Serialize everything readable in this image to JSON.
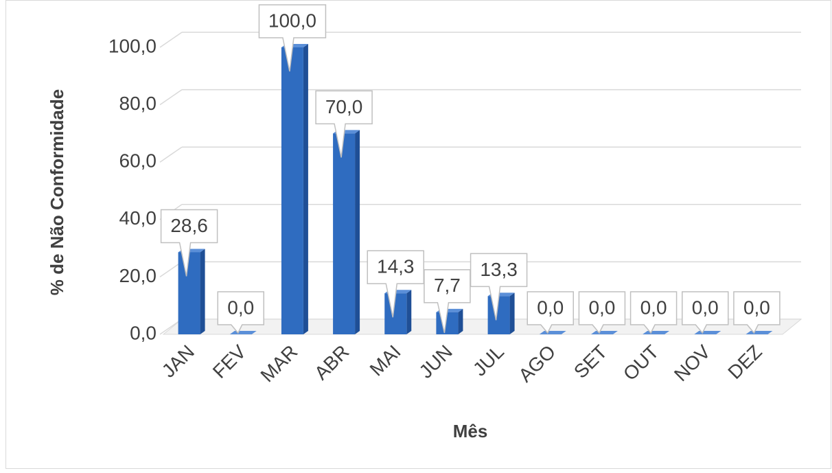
{
  "chart_data": {
    "type": "bar",
    "x_label": "Mês",
    "y_label": "% de Não Conformidade",
    "categories": [
      "JAN",
      "FEV",
      "MAR",
      "ABR",
      "MAI",
      "JUN",
      "JUL",
      "AGO",
      "SET",
      "OUT",
      "NOV",
      "DEZ"
    ],
    "values": [
      28.6,
      0,
      100,
      70,
      14.3,
      7.7,
      13.3,
      0,
      0,
      0,
      0,
      0
    ],
    "value_labels": [
      "28,6",
      "0,0",
      "100,0",
      "70,0",
      "14,3",
      "7,7",
      "13,3",
      "0,0",
      "0,0",
      "0,0",
      "0,0",
      "0,0"
    ],
    "color": "#2f6cc0",
    "ylim": [
      0,
      100
    ],
    "yticks": [
      {
        "value": 0,
        "label": "0,0"
      },
      {
        "value": 20,
        "label": "20,0"
      },
      {
        "value": 40,
        "label": "40,0"
      },
      {
        "value": 60,
        "label": "60,0"
      },
      {
        "value": 80,
        "label": "80,0"
      },
      {
        "value": 100,
        "label": "100,0"
      }
    ],
    "grid": true
  }
}
